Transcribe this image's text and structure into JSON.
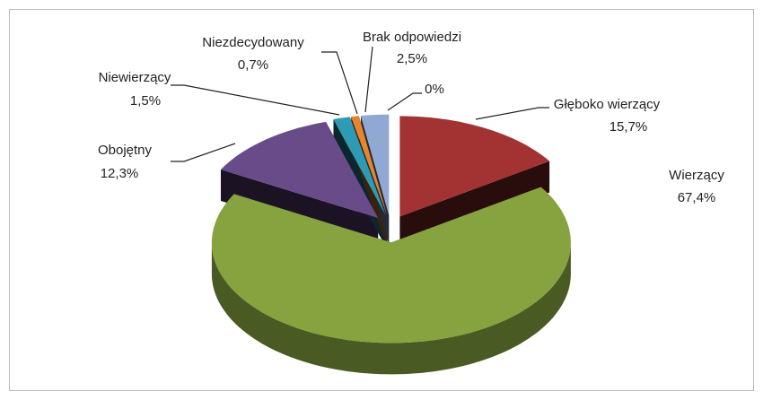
{
  "chart_data": {
    "type": "pie3d",
    "categories": [
      "Głęboko wierzący",
      "Wierzący",
      "Obojętny",
      "Niewierzący",
      "Niezdecydowany",
      "Brak odpowiedzi",
      null
    ],
    "values": [
      15.7,
      67.4,
      12.3,
      1.5,
      0.7,
      2.5,
      0
    ],
    "value_labels": [
      "15,7%",
      "67,4%",
      "12,3%",
      "1,5%",
      "0,7%",
      "2,5%",
      "0%"
    ],
    "colors": [
      "#a33232",
      "#86a33f",
      "#6a4b8a",
      "#2d9bb4",
      "#e8842a",
      "#8fa9d4",
      "#7f7f7f"
    ]
  }
}
